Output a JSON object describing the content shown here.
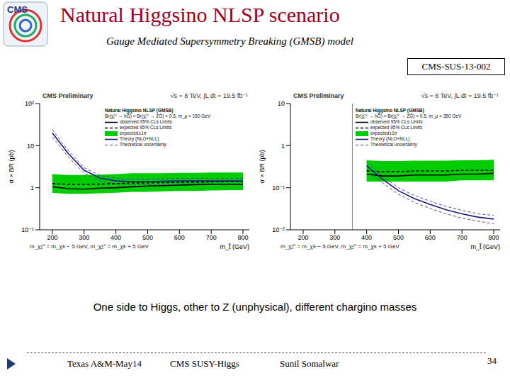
{
  "slide": {
    "logo_text": "CMS",
    "title": "Natural Higgsino NLSP scenario",
    "subtitle": "Gauge Mediated Supersymmetry Breaking (GMSB) model",
    "report_id": "CMS-SUS-13-002",
    "caption": "One side to Higgs, other to Z (unphysical), different chargino masses",
    "footer": [
      "Texas A&M-May14",
      "CMS SUSY-Higgs",
      "Sunil Somalwar"
    ],
    "page": 34
  },
  "chart_data": [
    {
      "type": "line",
      "title": "CMS Preliminary",
      "subtitle": "√s = 8 TeV, ∫L dt = 19.5 fb⁻¹",
      "legend_title": "Natural Higgsino NLSP (GMSB)",
      "annotations": [
        "Br(χ̃₁⁰ → hG̃) = Br(χ̃₁⁰ → ZG̃) = 0.5, m_μ = 150 GeV",
        "m_χ̃₁⁰ = m_χ̃± − 5 GeV, m_χ̃₂⁰ = m_χ̃± + 5 GeV"
      ],
      "x_label": "m_t̃ (GeV)",
      "y_label": "σ × BR (pb)",
      "log": "y",
      "grid": false,
      "legend": "upper right",
      "x": [
        200,
        250,
        300,
        350,
        400,
        450,
        500,
        550,
        600,
        650,
        700,
        750,
        800
      ],
      "xlim": [
        160,
        820
      ],
      "xticks": [
        200,
        300,
        400,
        500,
        600,
        700,
        800
      ],
      "ylim": [
        0.1,
        100
      ],
      "yticks": [
        {
          "value": 0.1,
          "label": "10⁻¹"
        },
        1,
        10,
        {
          "value": 100,
          "label": "10²"
        }
      ],
      "series": [
        {
          "name": "observed 95% CLs Limits",
          "type": "line",
          "color": "#000000",
          "line_style": "solid",
          "values": [
            1.05,
            0.95,
            0.92,
            0.98,
            1.0,
            1.05,
            1.1,
            1.12,
            1.15,
            1.18,
            1.2,
            1.2,
            1.2
          ]
        },
        {
          "name": "expected 95% CLs Limits",
          "type": "line",
          "color": "#000000",
          "line_style": "dashed",
          "values": [
            1.25,
            1.2,
            1.2,
            1.22,
            1.25,
            1.3,
            1.3,
            1.32,
            1.35,
            1.35,
            1.38,
            1.4,
            1.4
          ]
        },
        {
          "name": "expected±1σ",
          "type": "band",
          "color": "#00cc00",
          "low": [
            0.75,
            0.72,
            0.72,
            0.74,
            0.76,
            0.8,
            0.8,
            0.82,
            0.84,
            0.84,
            0.86,
            0.87,
            0.88
          ],
          "high": [
            2.1,
            2.0,
            2.0,
            2.05,
            2.1,
            2.2,
            2.2,
            2.2,
            2.25,
            2.25,
            2.3,
            2.3,
            2.3
          ]
        },
        {
          "name": "Theory (NLO+NLL)",
          "type": "line",
          "color": "#1a1a80",
          "line_style": "solid",
          "values": [
            20,
            6.5,
            2.6,
            1.7,
            1.45,
            1.4,
            1.4,
            1.42,
            1.45,
            1.45,
            1.45,
            1.45,
            1.45
          ]
        },
        {
          "name": "Theoretical uncertainty",
          "type": "band_lines",
          "color": "#4a4aa0",
          "line_style": "dashed",
          "low": [
            16,
            5.4,
            2.2,
            1.45,
            1.23,
            1.19,
            1.19,
            1.21,
            1.23,
            1.23,
            1.23,
            1.23,
            1.23
          ],
          "high": [
            24,
            7.6,
            3.0,
            1.95,
            1.67,
            1.6,
            1.6,
            1.63,
            1.67,
            1.67,
            1.67,
            1.67,
            1.67
          ]
        }
      ]
    },
    {
      "type": "line",
      "title": "CMS Preliminary",
      "subtitle": "√s = 8 TeV, ∫L dt = 19.5 fb⁻¹",
      "legend_title": "Natural Higgsino NLSP (GMSB)",
      "annotations": [
        "Br(χ̃₁⁰ → hG̃) = Br(χ̃₁⁰ → ZG̃) = 0.5, m_μ = 350 GeV",
        "m_χ̃₁⁰ = m_χ̃± − 5 GeV, m_χ̃₂⁰ = m_χ̃± + 5 GeV"
      ],
      "x_label": "m_t̃ (GeV)",
      "y_label": "σ × BR (pb)",
      "log": "y",
      "grid": false,
      "legend": "upper right",
      "vline": 355,
      "x": [
        400,
        450,
        500,
        550,
        600,
        650,
        700,
        750,
        800
      ],
      "xlim": [
        160,
        820
      ],
      "xticks": [
        200,
        300,
        400,
        500,
        600,
        700,
        800
      ],
      "ylim": [
        0.01,
        10
      ],
      "yticks": [
        {
          "value": 0.01,
          "label": "10⁻²"
        },
        {
          "value": 0.1,
          "label": "10⁻¹"
        },
        1,
        10
      ],
      "series": [
        {
          "name": "observed 95% CLs Limits",
          "type": "line",
          "color": "#000000",
          "line_style": "solid",
          "values": [
            0.21,
            0.19,
            0.19,
            0.2,
            0.2,
            0.2,
            0.21,
            0.21,
            0.22
          ]
        },
        {
          "name": "expected 95% CLs Limits",
          "type": "line",
          "color": "#000000",
          "line_style": "dashed",
          "values": [
            0.25,
            0.24,
            0.24,
            0.25,
            0.25,
            0.25,
            0.26,
            0.26,
            0.26
          ]
        },
        {
          "name": "expected±1σ",
          "type": "band",
          "color": "#00cc00",
          "low": [
            0.14,
            0.14,
            0.14,
            0.14,
            0.14,
            0.14,
            0.15,
            0.15,
            0.15
          ],
          "high": [
            0.45,
            0.43,
            0.43,
            0.44,
            0.44,
            0.44,
            0.45,
            0.45,
            0.46
          ]
        },
        {
          "name": "Theory (NLO+NLL)",
          "type": "line",
          "color": "#1a1a80",
          "line_style": "solid",
          "values": [
            0.33,
            0.16,
            0.085,
            0.055,
            0.04,
            0.03,
            0.024,
            0.02,
            0.018
          ]
        },
        {
          "name": "Theoretical uncertainty",
          "type": "band_lines",
          "color": "#4a4aa0",
          "line_style": "dashed",
          "low": [
            0.27,
            0.13,
            0.07,
            0.045,
            0.032,
            0.024,
            0.019,
            0.016,
            0.014
          ],
          "high": [
            0.39,
            0.19,
            0.1,
            0.065,
            0.048,
            0.036,
            0.029,
            0.024,
            0.022
          ]
        }
      ]
    }
  ]
}
